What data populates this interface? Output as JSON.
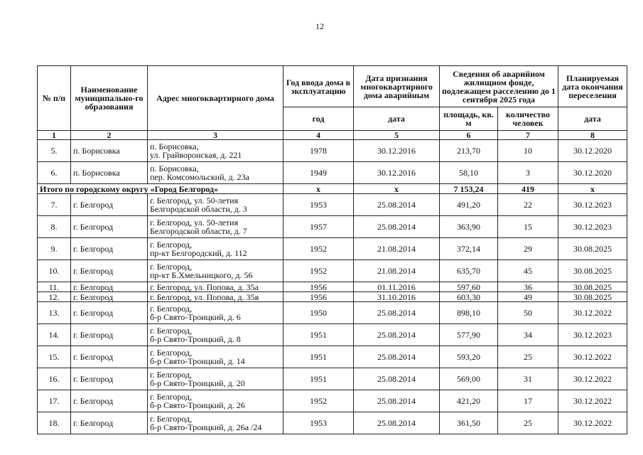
{
  "page_number": "12",
  "header": {
    "columns": [
      "№ п/п",
      "Наименование муниципально-го образования",
      "Адрес многоквартирного дома",
      "Год ввода дома в эксплуатацию",
      "Дата признания многоквартирного дома аварийным",
      "Сведения об аварийном жилищном фонде, подлежащем расселению до 1 сентября 2025 года",
      "Планируемая дата окончания переселения"
    ],
    "sub": [
      "год",
      "дата",
      "площадь, кв. м",
      "количество человек",
      "дата"
    ],
    "numbers": [
      "1",
      "2",
      "3",
      "4",
      "5",
      "6",
      "7",
      "8"
    ]
  },
  "table": {
    "rows": [
      [
        "5.",
        "п. Борисовка",
        [
          "п. Борисовка,",
          "ул. Грайворонская, д. 221"
        ],
        "1978",
        "30.12.2016",
        "213,70",
        "10",
        "30.12.2020"
      ],
      [
        "6.",
        "п. Борисовка",
        [
          "п. Борисовка,",
          "пер. Комсомольский, д. 23а"
        ],
        "1949",
        "30.12.2016",
        "58,10",
        "3",
        "30.12.2020"
      ],
      {
        "label": "Итого по городскому округу «Город Белгород»",
        "cells": [
          "х",
          "х",
          "7 153,24",
          "419",
          "х"
        ]
      },
      [
        "7.",
        "г. Белгород",
        [
          "г. Белгород, ул. 50-летия",
          "Белгородской области, д. 3"
        ],
        "1953",
        "25.08.2014",
        "491,20",
        "22",
        "30.12.2023"
      ],
      [
        "8.",
        "г. Белгород",
        [
          "г. Белгород, ул. 50-летия",
          "Белгородской области, д. 7"
        ],
        "1957",
        "25.08.2014",
        "363,90",
        "15",
        "30.12.2023"
      ],
      [
        "9.",
        "г. Белгород",
        [
          "г. Белгород,",
          "пр-кт Белгородский, д. 112"
        ],
        "1952",
        "21.08.2014",
        "372,14",
        "29",
        "30.08.2025"
      ],
      [
        "10.",
        "г. Белгород",
        [
          "г. Белгород,",
          "пр-кт Б.Хмельницкого, д. 56"
        ],
        "1952",
        "21.08.2014",
        "635,70",
        "45",
        "30.08.2025"
      ],
      [
        "11.",
        "г. Белгород",
        [
          "г. Белгород, ул. Попова, д. 35а"
        ],
        "1956",
        "01.11.2016",
        "597,60",
        "36",
        "30.08.2025"
      ],
      [
        "12.",
        "г. Белгород",
        [
          "г. Белгород, ул. Попова, д. 35в"
        ],
        "1956",
        "31.10.2016",
        "603,30",
        "49",
        "30.08.2025"
      ],
      [
        "13.",
        "г. Белгород",
        [
          "г. Белгород,",
          "б-р Свято-Троицкий, д. 6"
        ],
        "1950",
        "25.08.2014",
        "898,10",
        "50",
        "30.12.2022"
      ],
      [
        "14.",
        "г. Белгород",
        [
          "г. Белгород,",
          "б-р Свято-Троицкий, д. 8"
        ],
        "1951",
        "25.08.2014",
        "577,90",
        "34",
        "30.12.2023"
      ],
      [
        "15.",
        "г. Белгород",
        [
          "г. Белгород,",
          "б-р Свято-Троицкий, д. 14"
        ],
        "1951",
        "25.08.2014",
        "593,20",
        "25",
        "30.12.2022"
      ],
      [
        "16.",
        "г. Белгород",
        [
          "г. Белгород,",
          "б-р Свято-Троицкий, д. 20"
        ],
        "1951",
        "25.08.2014",
        "569,00",
        "31",
        "30.12.2022"
      ],
      [
        "17.",
        "г. Белгород",
        [
          "г. Белгород,",
          "б-р Свято-Троицкий, д. 26"
        ],
        "1952",
        "25.08.2014",
        "421,20",
        "17",
        "30.12.2022"
      ],
      [
        "18.",
        "г. Белгород",
        [
          "г. Белгород,",
          "б-р Свято-Троицкий, д. 26а /24"
        ],
        "1953",
        "25.08.2014",
        "361,50",
        "25",
        "30.12.2022"
      ]
    ]
  }
}
